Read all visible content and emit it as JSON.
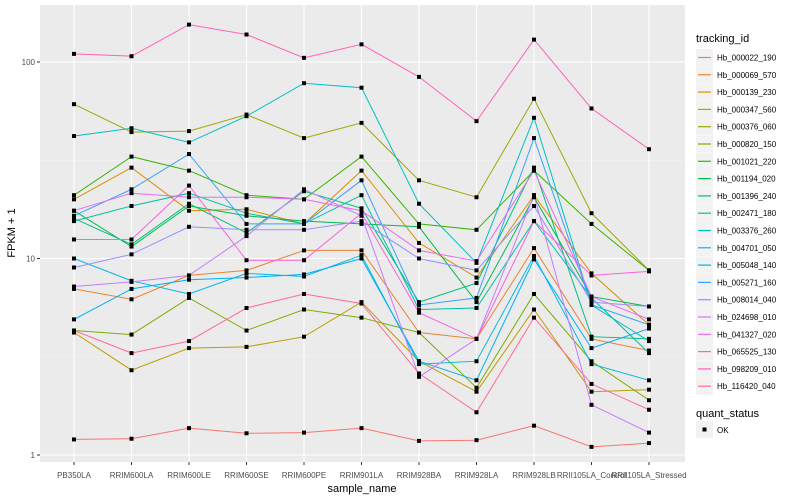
{
  "chart_data": {
    "type": "line",
    "title": "",
    "xlabel": "sample_name",
    "ylabel": "FPKM + 1",
    "yscale": "log10",
    "ylim": [
      0.95,
      190
    ],
    "yticks": [
      1,
      10,
      100
    ],
    "ytick_labels": [
      "1",
      "10",
      "100"
    ],
    "grid": true,
    "legend_position": "right",
    "categories": [
      "PB350LA",
      "RRIM600LA",
      "RRIM600LE",
      "RRIM600SE",
      "RRIM600PE",
      "RRIM901LA",
      "RRIM928BA",
      "RRIM928LA",
      "RRIM928LB",
      "RRII105LA_Control",
      "RRII105LA_Stressed"
    ],
    "category_labels": [
      "PB350LA",
      "RRIM600LA",
      "RRIM600LE",
      "RRIM600SE",
      "RRIM600PE",
      "RRIM901LA",
      "RRIM928BA",
      "RRIM928LA",
      "RRIM928LB",
      "RRII105LA_Control",
      "RRII105LA_Stressed"
    ],
    "legend_title": "tracking_id",
    "shape_legend_title": "quant_status",
    "shape_legend_label": "OK",
    "series": [
      {
        "name": "Hb_000022_190",
        "color": "#F8766D",
        "values": [
          1.2,
          1.21,
          1.37,
          1.29,
          1.3,
          1.37,
          1.18,
          1.19,
          1.41,
          1.1,
          1.15
        ]
      },
      {
        "name": "Hb_000069_570",
        "color": "#EA8331",
        "values": [
          7.0,
          6.2,
          8.2,
          8.7,
          11.0,
          11.0,
          4.2,
          3.9,
          11.3,
          3.9,
          3.4
        ]
      },
      {
        "name": "Hb_000139_230",
        "color": "#D89000",
        "values": [
          20.0,
          29.0,
          17.5,
          17.8,
          15.0,
          28.0,
          12.0,
          8.0,
          21.0,
          8.4,
          4.6
        ]
      },
      {
        "name": "Hb_000347_560",
        "color": "#C09B00",
        "values": [
          4.2,
          2.7,
          3.5,
          3.55,
          4.0,
          6.0,
          3.0,
          2.1,
          5.5,
          2.1,
          2.15
        ]
      },
      {
        "name": "Hb_000376_060",
        "color": "#A3A500",
        "values": [
          61.0,
          44.0,
          44.5,
          54.0,
          41.0,
          49.0,
          25.0,
          20.5,
          65.0,
          17.0,
          8.7
        ]
      },
      {
        "name": "Hb_000820_150",
        "color": "#7CAE00",
        "values": [
          4.3,
          4.1,
          6.3,
          4.3,
          5.5,
          5.0,
          4.2,
          2.2,
          6.6,
          3.0,
          1.9
        ]
      },
      {
        "name": "Hb_001021_220",
        "color": "#39B600",
        "values": [
          21.0,
          33.0,
          28.0,
          21.0,
          20.0,
          33.0,
          15.0,
          14.0,
          28.0,
          15.0,
          8.7
        ]
      },
      {
        "name": "Hb_001194_020",
        "color": "#00BB4E",
        "values": [
          17.5,
          11.5,
          18.5,
          16.5,
          15.5,
          15.0,
          14.5,
          6.0,
          20.5,
          6.4,
          5.7
        ]
      },
      {
        "name": "Hb_001396_240",
        "color": "#00BF7D",
        "values": [
          16.0,
          11.8,
          19.0,
          13.5,
          22.0,
          18.0,
          6.0,
          7.5,
          29.0,
          4.0,
          3.9
        ]
      },
      {
        "name": "Hb_002471_180",
        "color": "#00C1A3",
        "values": [
          15.5,
          18.5,
          21.5,
          17.0,
          15.0,
          21.0,
          5.5,
          5.6,
          15.5,
          6.3,
          3.3
        ]
      },
      {
        "name": "Hb_003376_260",
        "color": "#00BFC4",
        "values": [
          42.0,
          46.0,
          39.0,
          53.0,
          78.0,
          74.0,
          19.0,
          9.5,
          52.0,
          5.8,
          3.8
        ]
      },
      {
        "name": "Hb_004701_050",
        "color": "#00BAE0",
        "values": [
          10.0,
          7.7,
          6.6,
          8.4,
          8.1,
          10.4,
          2.9,
          3.0,
          10.3,
          2.9,
          2.4
        ]
      },
      {
        "name": "Hb_005048_140",
        "color": "#00B0F6",
        "values": [
          4.9,
          7.0,
          7.8,
          8.0,
          8.3,
          10.0,
          3.0,
          2.4,
          9.9,
          3.5,
          4.4
        ]
      },
      {
        "name": "Hb_005271_160",
        "color": "#35A2FF",
        "values": [
          16.5,
          22.5,
          34.0,
          15.0,
          15.0,
          25.0,
          5.8,
          6.3,
          41.0,
          5.8,
          4.6
        ]
      },
      {
        "name": "Hb_008014_040",
        "color": "#9590FF",
        "values": [
          9.0,
          10.5,
          14.5,
          14.0,
          14.0,
          15.5,
          10.0,
          8.7,
          18.5,
          6.0,
          5.7
        ]
      },
      {
        "name": "Hb_024698_010",
        "color": "#C77CFF",
        "values": [
          7.2,
          7.6,
          8.2,
          13.0,
          22.5,
          16.5,
          2.5,
          3.9,
          21.0,
          1.8,
          1.3
        ]
      },
      {
        "name": "Hb_041327_020",
        "color": "#E76BF3",
        "values": [
          17.5,
          21.5,
          20.5,
          20.5,
          20.0,
          17.5,
          11.0,
          9.7,
          28.0,
          6.4,
          4.9
        ]
      },
      {
        "name": "Hb_065525_130",
        "color": "#FA62DB",
        "values": [
          12.5,
          12.5,
          23.5,
          9.8,
          9.8,
          17.0,
          5.3,
          3.9,
          15.5,
          8.2,
          8.6
        ]
      },
      {
        "name": "Hb_098209_010",
        "color": "#FF62BC",
        "values": [
          110.0,
          107.0,
          155.0,
          138.0,
          105.0,
          123.0,
          84.0,
          50.0,
          130.0,
          58.0,
          36.0
        ]
      },
      {
        "name": "Hb_116420_040",
        "color": "#FF6C91",
        "values": [
          4.3,
          3.3,
          3.8,
          5.6,
          6.6,
          5.9,
          2.6,
          1.65,
          5.0,
          2.3,
          1.7
        ]
      }
    ]
  }
}
